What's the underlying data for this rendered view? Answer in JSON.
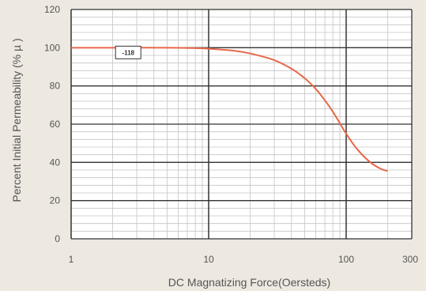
{
  "chart_data": {
    "type": "line",
    "title": "",
    "xlabel": "DC Magnatizing Force(Oersteds)",
    "ylabel": "Percent Initial Permeability (% µ )",
    "x_scale": "log",
    "xlim": [
      1,
      300
    ],
    "ylim": [
      0,
      120
    ],
    "x_ticks": [
      1,
      10,
      100,
      300
    ],
    "x_tick_labels": [
      "1",
      "10",
      "100",
      "300"
    ],
    "y_ticks": [
      0,
      20,
      40,
      60,
      80,
      100,
      120
    ],
    "y_tick_labels": [
      "0",
      "20",
      "40",
      "60",
      "80",
      "100",
      "120"
    ],
    "grid": true,
    "series": [
      {
        "name": "-118",
        "color": "#e8674a",
        "x": [
          1,
          2,
          5,
          8,
          10,
          15,
          20,
          30,
          40,
          50,
          60,
          70,
          80,
          90,
          100,
          120,
          150,
          180,
          200
        ],
        "y": [
          100,
          100,
          100,
          99.8,
          99.5,
          98.5,
          97,
          93.5,
          89,
          84,
          78.5,
          72.5,
          66.5,
          60.5,
          55,
          47,
          40,
          36.5,
          35.5
        ]
      }
    ],
    "annotations": [
      {
        "text": "-118",
        "x": 2.6,
        "y": 97.5
      }
    ]
  }
}
